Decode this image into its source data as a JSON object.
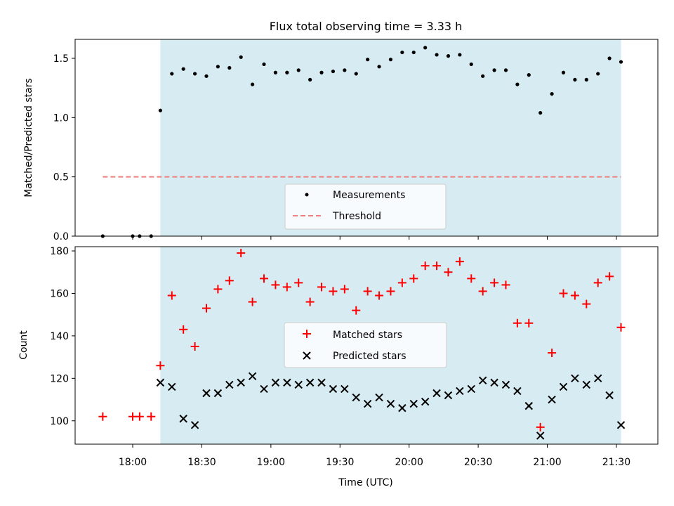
{
  "title": "Flux total observing time = 3.33 h",
  "colors": {
    "shade": "#add8e6",
    "matched": "#ff0000",
    "predicted": "#000000",
    "threshold": "#f08080",
    "measurement": "#000000"
  },
  "chart_data": [
    {
      "type": "scatter",
      "ylabel": "Matched/Predicted stars",
      "ylim": [
        0,
        1.66
      ],
      "yticks": [
        0.0,
        0.5,
        1.0,
        1.5
      ],
      "ytick_labels": [
        "0.0",
        "0.5",
        "1.0",
        "1.5"
      ],
      "shaded_interval": [
        "18:12",
        "21:32"
      ],
      "legend": {
        "placement": "lower center",
        "entries": [
          "Measurements",
          "Threshold"
        ]
      },
      "threshold": {
        "name": "Threshold",
        "value": 0.5,
        "x_range": [
          "17:47",
          "21:32"
        ],
        "style": "dashed"
      },
      "series": [
        {
          "name": "Measurements",
          "marker": "dot",
          "points": [
            [
              "17:47",
              0.0
            ],
            [
              "18:00",
              0.0
            ],
            [
              "18:03",
              0.0
            ],
            [
              "18:08",
              0.0
            ],
            [
              "18:12",
              1.06
            ],
            [
              "18:17",
              1.37
            ],
            [
              "18:22",
              1.41
            ],
            [
              "18:27",
              1.37
            ],
            [
              "18:32",
              1.35
            ],
            [
              "18:37",
              1.43
            ],
            [
              "18:42",
              1.42
            ],
            [
              "18:47",
              1.51
            ],
            [
              "18:52",
              1.28
            ],
            [
              "18:57",
              1.45
            ],
            [
              "19:02",
              1.38
            ],
            [
              "19:07",
              1.38
            ],
            [
              "19:12",
              1.4
            ],
            [
              "19:17",
              1.32
            ],
            [
              "19:22",
              1.38
            ],
            [
              "19:27",
              1.39
            ],
            [
              "19:32",
              1.4
            ],
            [
              "19:37",
              1.37
            ],
            [
              "19:42",
              1.49
            ],
            [
              "19:47",
              1.43
            ],
            [
              "19:52",
              1.49
            ],
            [
              "19:57",
              1.55
            ],
            [
              "20:02",
              1.55
            ],
            [
              "20:07",
              1.59
            ],
            [
              "20:12",
              1.53
            ],
            [
              "20:17",
              1.52
            ],
            [
              "20:22",
              1.53
            ],
            [
              "20:27",
              1.45
            ],
            [
              "20:32",
              1.35
            ],
            [
              "20:37",
              1.4
            ],
            [
              "20:42",
              1.4
            ],
            [
              "20:47",
              1.28
            ],
            [
              "20:52",
              1.36
            ],
            [
              "20:57",
              1.04
            ],
            [
              "21:02",
              1.2
            ],
            [
              "21:07",
              1.38
            ],
            [
              "21:12",
              1.32
            ],
            [
              "21:17",
              1.32
            ],
            [
              "21:22",
              1.37
            ],
            [
              "21:27",
              1.5
            ],
            [
              "21:32",
              1.47
            ]
          ]
        }
      ]
    },
    {
      "type": "scatter",
      "ylabel": "Count",
      "xlabel": "Time (UTC)",
      "ylim": [
        89,
        182
      ],
      "yticks": [
        100,
        120,
        140,
        160,
        180
      ],
      "ytick_labels": [
        "100",
        "120",
        "140",
        "160",
        "180"
      ],
      "xlim": [
        "17:35",
        "21:48"
      ],
      "xticks": [
        "18:00",
        "18:30",
        "19:00",
        "19:30",
        "20:00",
        "20:30",
        "21:00",
        "21:30"
      ],
      "shaded_interval": [
        "18:12",
        "21:32"
      ],
      "legend": {
        "placement": "center",
        "entries": [
          "Matched stars",
          "Predicted stars"
        ]
      },
      "series": [
        {
          "name": "Matched stars",
          "marker": "plus",
          "points": [
            [
              "17:47",
              102
            ],
            [
              "18:00",
              102
            ],
            [
              "18:03",
              102
            ],
            [
              "18:08",
              102
            ],
            [
              "18:12",
              126
            ],
            [
              "18:17",
              159
            ],
            [
              "18:22",
              143
            ],
            [
              "18:27",
              135
            ],
            [
              "18:32",
              153
            ],
            [
              "18:37",
              162
            ],
            [
              "18:42",
              166
            ],
            [
              "18:47",
              179
            ],
            [
              "18:52",
              156
            ],
            [
              "18:57",
              167
            ],
            [
              "19:02",
              164
            ],
            [
              "19:07",
              163
            ],
            [
              "19:12",
              165
            ],
            [
              "19:17",
              156
            ],
            [
              "19:22",
              163
            ],
            [
              "19:27",
              161
            ],
            [
              "19:32",
              162
            ],
            [
              "19:37",
              152
            ],
            [
              "19:42",
              161
            ],
            [
              "19:47",
              159
            ],
            [
              "19:52",
              161
            ],
            [
              "19:57",
              165
            ],
            [
              "20:02",
              167
            ],
            [
              "20:07",
              173
            ],
            [
              "20:12",
              173
            ],
            [
              "20:17",
              170
            ],
            [
              "20:22",
              175
            ],
            [
              "20:27",
              167
            ],
            [
              "20:32",
              161
            ],
            [
              "20:37",
              165
            ],
            [
              "20:42",
              164
            ],
            [
              "20:47",
              146
            ],
            [
              "20:52",
              146
            ],
            [
              "20:57",
              97
            ],
            [
              "21:02",
              132
            ],
            [
              "21:07",
              160
            ],
            [
              "21:12",
              159
            ],
            [
              "21:17",
              155
            ],
            [
              "21:22",
              165
            ],
            [
              "21:27",
              168
            ],
            [
              "21:32",
              144
            ]
          ]
        },
        {
          "name": "Predicted stars",
          "marker": "x",
          "points": [
            [
              "18:12",
              118
            ],
            [
              "18:17",
              116
            ],
            [
              "18:22",
              101
            ],
            [
              "18:27",
              98
            ],
            [
              "18:32",
              113
            ],
            [
              "18:37",
              113
            ],
            [
              "18:42",
              117
            ],
            [
              "18:47",
              118
            ],
            [
              "18:52",
              121
            ],
            [
              "18:57",
              115
            ],
            [
              "19:02",
              118
            ],
            [
              "19:07",
              118
            ],
            [
              "19:12",
              117
            ],
            [
              "19:17",
              118
            ],
            [
              "19:22",
              118
            ],
            [
              "19:27",
              115
            ],
            [
              "19:32",
              115
            ],
            [
              "19:37",
              111
            ],
            [
              "19:42",
              108
            ],
            [
              "19:47",
              111
            ],
            [
              "19:52",
              108
            ],
            [
              "19:57",
              106
            ],
            [
              "20:02",
              108
            ],
            [
              "20:07",
              109
            ],
            [
              "20:12",
              113
            ],
            [
              "20:17",
              112
            ],
            [
              "20:22",
              114
            ],
            [
              "20:27",
              115
            ],
            [
              "20:32",
              119
            ],
            [
              "20:37",
              118
            ],
            [
              "20:42",
              117
            ],
            [
              "20:47",
              114
            ],
            [
              "20:52",
              107
            ],
            [
              "20:57",
              93
            ],
            [
              "21:02",
              110
            ],
            [
              "21:07",
              116
            ],
            [
              "21:12",
              120
            ],
            [
              "21:17",
              117
            ],
            [
              "21:22",
              120
            ],
            [
              "21:27",
              112
            ],
            [
              "21:32",
              98
            ]
          ]
        }
      ]
    }
  ]
}
